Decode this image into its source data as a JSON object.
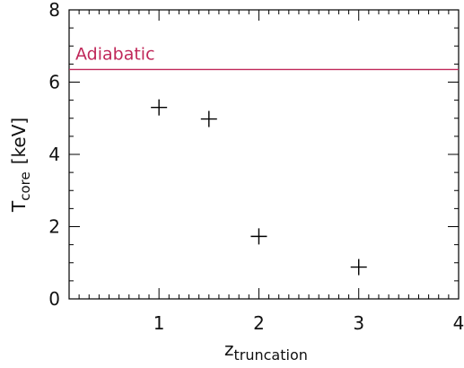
{
  "chart_data": {
    "type": "scatter",
    "xlabel": {
      "main": "z",
      "sub": "truncation"
    },
    "ylabel": {
      "main": "T",
      "sub": "core",
      "unit": "[keV]"
    },
    "xlim": [
      0.1,
      4.0
    ],
    "ylim": [
      0,
      8
    ],
    "xticks": [
      1,
      2,
      3,
      4
    ],
    "yticks": [
      0,
      2,
      4,
      6,
      8
    ],
    "grid": false,
    "marker": "plus",
    "marker_color": "#000000",
    "points": [
      {
        "x": 1.0,
        "y": 5.3
      },
      {
        "x": 1.5,
        "y": 4.98
      },
      {
        "x": 2.0,
        "y": 1.73
      },
      {
        "x": 3.0,
        "y": 0.88
      }
    ],
    "reference_line": {
      "label": "Adiabatic",
      "y": 6.35,
      "color": "#c0285a"
    }
  }
}
